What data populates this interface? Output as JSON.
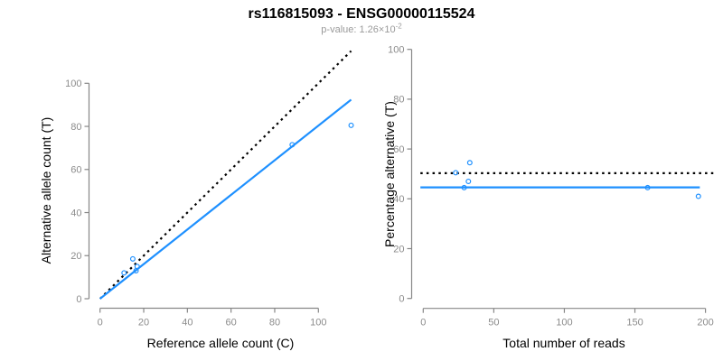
{
  "header": {
    "title": "rs116815093 - ENSG00000115524",
    "pvalue_prefix": "p-value: 1.26×10",
    "pvalue_exponent": "-2"
  },
  "colors": {
    "accent_blue": "#1E90FF",
    "axis_gray": "#878787",
    "tick_label_gray": "#8c8c8c",
    "dotted_black": "#000000"
  },
  "chart_data": [
    {
      "type": "scatter",
      "name": "allele-counts",
      "xlabel": "Reference allele count (C)",
      "ylabel": "Alternative allele count (T)",
      "xticks": [
        0,
        20,
        40,
        60,
        80,
        100
      ],
      "yticks": [
        0,
        20,
        40,
        60,
        80,
        100
      ],
      "xlim": [
        0,
        115
      ],
      "ylim": [
        0,
        115
      ],
      "points": [
        [
          11,
          12
        ],
        [
          15,
          18.5
        ],
        [
          16.5,
          13
        ],
        [
          17,
          15
        ],
        [
          88,
          71.5
        ],
        [
          115,
          80.5
        ]
      ],
      "lines": [
        {
          "name": "identity-line",
          "style": "dotted",
          "color": "#000000",
          "x": [
            0,
            115
          ],
          "y": [
            0,
            115
          ]
        },
        {
          "name": "fit-line",
          "style": "solid",
          "color": "#1E90FF",
          "x": [
            0,
            115
          ],
          "y": [
            0,
            92.4
          ]
        }
      ]
    },
    {
      "type": "scatter",
      "name": "percentage-vs-reads",
      "xlabel": "Total number of reads",
      "ylabel": "Percentage alternative (T)",
      "xticks": [
        0,
        50,
        100,
        150,
        200
      ],
      "yticks": [
        0,
        20,
        40,
        60,
        80,
        100
      ],
      "xlim": [
        0,
        207
      ],
      "ylim": [
        0,
        100
      ],
      "points": [
        [
          23,
          50.5
        ],
        [
          29,
          44.5
        ],
        [
          32,
          47
        ],
        [
          33,
          54.5
        ],
        [
          159,
          44.5
        ],
        [
          195,
          41
        ]
      ],
      "lines": [
        {
          "name": "expected-line",
          "style": "dotted",
          "color": "#000000",
          "x": [
            -2,
            206
          ],
          "y": [
            50.3,
            50.3
          ]
        },
        {
          "name": "fit-line",
          "style": "solid",
          "color": "#1E90FF",
          "x": [
            -2,
            196
          ],
          "y": [
            44.6,
            44.6
          ]
        }
      ]
    }
  ]
}
